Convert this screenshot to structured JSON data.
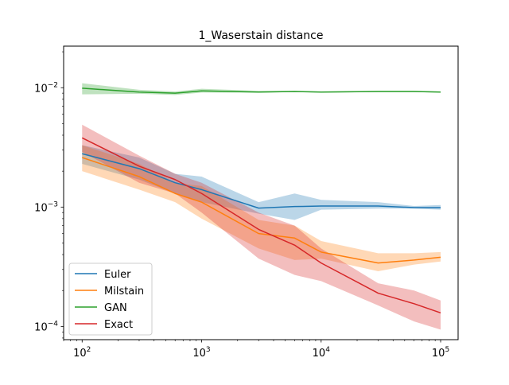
{
  "chart_data": {
    "type": "line",
    "title": "1_Waserstain distance",
    "xlabel": "",
    "ylabel": "",
    "xscale": "log",
    "yscale": "log",
    "xlim": [
      70,
      140000
    ],
    "ylim": [
      7.75e-05,
      0.0223
    ],
    "grid": false,
    "legend_position": "lower-left",
    "x_tick_labels": [
      {
        "base": "10",
        "exp": "2",
        "value": 100
      },
      {
        "base": "10",
        "exp": "3",
        "value": 1000
      },
      {
        "base": "10",
        "exp": "4",
        "value": 10000
      },
      {
        "base": "10",
        "exp": "5",
        "value": 100000
      }
    ],
    "y_tick_labels": [
      {
        "base": "10",
        "exp": "−4",
        "value": 0.0001
      },
      {
        "base": "10",
        "exp": "−3",
        "value": 0.001
      },
      {
        "base": "10",
        "exp": "−2",
        "value": 0.01
      }
    ],
    "x": [
      100,
      300,
      600,
      1000,
      3000,
      6000,
      10000,
      30000,
      60000,
      100000
    ],
    "series": [
      {
        "name": "Euler",
        "color": "#1f77b4",
        "values": [
          0.0028,
          0.0021,
          0.0016,
          0.0014,
          0.00098,
          0.00101,
          0.00102,
          0.00102,
          0.00099,
          0.00099
        ],
        "lower": [
          0.0023,
          0.0017,
          0.0013,
          0.0011,
          0.00088,
          0.00078,
          0.00095,
          0.00097,
          0.00097,
          0.00095
        ],
        "upper": [
          0.0033,
          0.0026,
          0.0019,
          0.0018,
          0.0011,
          0.0013,
          0.00115,
          0.0011,
          0.00102,
          0.00104
        ]
      },
      {
        "name": "Milstain",
        "color": "#ff7f0e",
        "values": [
          0.0026,
          0.0018,
          0.0013,
          0.0011,
          0.0006,
          0.00055,
          0.00042,
          0.00034,
          0.00036,
          0.00038
        ],
        "lower": [
          0.002,
          0.0014,
          0.0011,
          0.0008,
          0.00045,
          0.00036,
          0.00037,
          0.00029,
          0.00033,
          0.00035
        ],
        "upper": [
          0.0033,
          0.0023,
          0.0016,
          0.0015,
          0.00078,
          0.0007,
          0.00052,
          0.00041,
          0.00041,
          0.00042
        ]
      },
      {
        "name": "GAN",
        "color": "#2ca02c",
        "values": [
          0.0099,
          0.0092,
          0.009,
          0.0094,
          0.0092,
          0.0093,
          0.0092,
          0.0093,
          0.0093,
          0.0092
        ],
        "lower": [
          0.0088,
          0.0089,
          0.0087,
          0.0091,
          0.0091,
          0.0092,
          0.0091,
          0.0092,
          0.0092,
          0.0091
        ],
        "upper": [
          0.0109,
          0.0096,
          0.0093,
          0.0098,
          0.0094,
          0.0094,
          0.0093,
          0.0094,
          0.0094,
          0.0093
        ]
      },
      {
        "name": "Exact",
        "color": "#d62728",
        "values": [
          0.0038,
          0.0022,
          0.0017,
          0.0013,
          0.00065,
          0.00048,
          0.00034,
          0.00019,
          0.000155,
          0.00013
        ],
        "lower": [
          0.0029,
          0.0016,
          0.0013,
          0.0009,
          0.00037,
          0.00027,
          0.00024,
          0.00015,
          0.00011,
          9.4e-05
        ],
        "upper": [
          0.0049,
          0.0027,
          0.0019,
          0.0016,
          0.0009,
          0.0007,
          0.00045,
          0.00023,
          0.0002,
          0.000165
        ]
      }
    ]
  }
}
